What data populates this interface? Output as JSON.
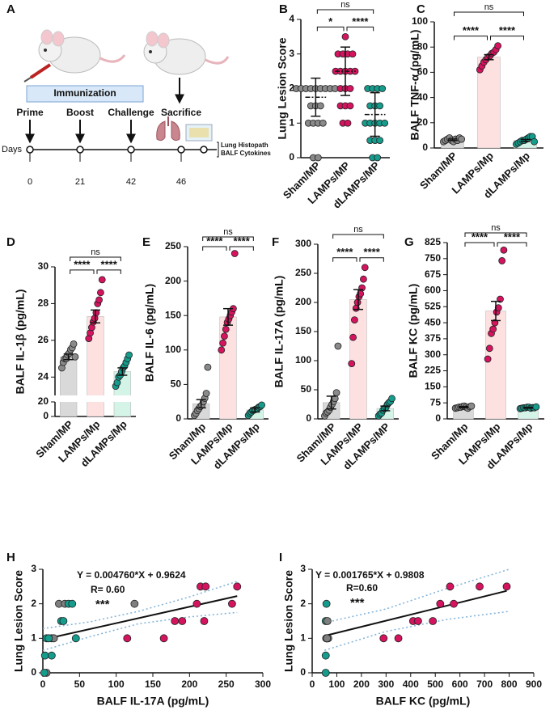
{
  "diagram": {
    "label": "A",
    "box": "Immunization",
    "events": [
      "Prime",
      "Boost",
      "Challenge",
      "Sacrifice"
    ],
    "days_label": "Days",
    "days": [
      0,
      21,
      42,
      46
    ],
    "endpoints": [
      "Lung Histopath",
      "BALF Cytokines"
    ]
  },
  "chart_data": [
    {
      "type": "dotplot",
      "panel_label": "B",
      "y_label": "Lung Lesion Score",
      "categories": [
        "Sham/MP",
        "LAMPs/MP",
        "dLAMPs/MP"
      ],
      "points": [
        [
          0,
          0,
          1,
          1,
          1,
          1,
          1.5,
          1.5,
          1.5,
          2,
          2,
          2,
          2,
          2,
          2,
          2,
          2,
          2
        ],
        [
          1,
          1,
          1.5,
          1.5,
          1.5,
          2,
          2,
          2,
          2.5,
          2.5,
          2.5,
          2.5,
          2.5,
          3,
          3,
          3,
          3,
          3.5
        ],
        [
          0,
          0,
          0.5,
          0.5,
          0.5,
          1,
          1,
          1,
          1,
          1,
          1.5,
          1.5,
          1.5,
          2,
          2,
          2,
          2
        ]
      ],
      "mean": [
        1.75,
        2.5,
        1.25
      ],
      "sd": [
        0.55,
        0.7,
        0.63
      ],
      "point_colors": [
        "#8a8a8a",
        "#d6135f",
        "#169c8c"
      ],
      "ylim": [
        0,
        4
      ],
      "yticks": [
        0,
        1,
        2,
        3,
        4
      ],
      "brackets": [
        {
          "pair": [
            0,
            2
          ],
          "label": "ns"
        },
        {
          "pair": [
            0,
            1
          ],
          "label": "*"
        },
        {
          "pair": [
            1,
            2
          ],
          "label": "****"
        }
      ]
    },
    {
      "type": "bar",
      "panel_label": "C",
      "y_label": "BALF TNF-α (pg/mL)",
      "categories": [
        "Sham/MP",
        "LAMPs/Mp",
        "dLAMPs/Mp"
      ],
      "values": [
        6.5,
        72,
        6
      ],
      "errors": [
        0.6,
        2,
        0.8
      ],
      "points": [
        [
          5,
          6,
          7,
          8,
          6,
          5,
          7,
          6,
          8,
          7
        ],
        [
          62,
          65,
          68,
          70,
          72,
          73,
          75,
          76,
          78,
          81
        ],
        [
          3,
          4,
          5,
          6,
          6,
          7,
          8,
          9,
          9,
          5
        ]
      ],
      "colors": [
        "#d9d9d9",
        "#fde0e0",
        "#d4f4e8"
      ],
      "point_colors": [
        "#8a8a8a",
        "#d6135f",
        "#169c8c"
      ],
      "ylim": [
        0,
        100
      ],
      "yticks": [
        0,
        20,
        40,
        60,
        80,
        100
      ],
      "brackets": [
        {
          "pair": [
            0,
            2
          ],
          "label": "ns"
        },
        {
          "pair": [
            0,
            1
          ],
          "label": "****"
        },
        {
          "pair": [
            1,
            2
          ],
          "label": "****"
        }
      ]
    },
    {
      "type": "bar",
      "panel_label": "D",
      "y_label": "BALF IL-1β (pg/mL)",
      "categories": [
        "Sham/MP",
        "LAMPs/Mp",
        "dLAMPs/Mp"
      ],
      "values": [
        25.1,
        27.3,
        24.3
      ],
      "errors": [
        0.15,
        0.35,
        0.2
      ],
      "points": [
        [
          24.5,
          24.8,
          25,
          25,
          25.2,
          25.3,
          25.5,
          25.6,
          25.8,
          25.1
        ],
        [
          26.1,
          26.4,
          26.7,
          27,
          27.2,
          27.5,
          28,
          28.2,
          28.6,
          29.3
        ],
        [
          23.5,
          23.7,
          24,
          24.1,
          24.3,
          24.5,
          24.6,
          24.8,
          25,
          25.2
        ]
      ],
      "colors": [
        "#d9d9d9",
        "#fde0e0",
        "#d4f4e8"
      ],
      "point_colors": [
        "#8a8a8a",
        "#d6135f",
        "#169c8c"
      ],
      "ylim": [
        0,
        30
      ],
      "ybreak": [
        20,
        23
      ],
      "yticks": [
        0,
        20,
        24,
        26,
        28,
        30
      ],
      "brackets": [
        {
          "pair": [
            0,
            2
          ],
          "label": "ns"
        },
        {
          "pair": [
            0,
            1
          ],
          "label": "****"
        },
        {
          "pair": [
            1,
            2
          ],
          "label": "****"
        }
      ]
    },
    {
      "type": "bar",
      "panel_label": "E",
      "y_label": "BALF IL-6 (pg/mL)",
      "categories": [
        "Sham/Mp",
        "LAMPs/Mp",
        "dLAMPs/Mp"
      ],
      "values": [
        22,
        148,
        13
      ],
      "errors": [
        6,
        12,
        3
      ],
      "points": [
        [
          5,
          8,
          12,
          15,
          18,
          20,
          25,
          30,
          37,
          75
        ],
        [
          100,
          110,
          120,
          130,
          140,
          145,
          150,
          155,
          160,
          240
        ],
        [
          5,
          8,
          10,
          12,
          13,
          14,
          15,
          17,
          18,
          20
        ]
      ],
      "colors": [
        "#d9d9d9",
        "#fde0e0",
        "#d4f4e8"
      ],
      "point_colors": [
        "#8a8a8a",
        "#d6135f",
        "#169c8c"
      ],
      "ylim": [
        0,
        250
      ],
      "yticks": [
        0,
        50,
        100,
        150,
        200,
        250
      ],
      "brackets": [
        {
          "pair": [
            0,
            2
          ],
          "label": "ns"
        },
        {
          "pair": [
            0,
            1
          ],
          "label": "****"
        },
        {
          "pair": [
            1,
            2
          ],
          "label": "****"
        }
      ]
    },
    {
      "type": "bar",
      "panel_label": "F",
      "y_label": "BALF IL-17A (pg/mL)",
      "categories": [
        "Sham//MP",
        "LAMPs/MP",
        "dLAMPs/MP"
      ],
      "values": [
        28,
        205,
        18
      ],
      "errors": [
        11,
        17,
        4
      ],
      "points": [
        [
          5,
          10,
          12,
          15,
          20,
          25,
          30,
          35,
          45,
          125
        ],
        [
          95,
          140,
          170,
          190,
          200,
          210,
          215,
          225,
          240,
          260
        ],
        [
          5,
          8,
          10,
          15,
          18,
          20,
          25,
          28,
          30,
          35
        ]
      ],
      "colors": [
        "#d9d9d9",
        "#fde0e0",
        "#d4f4e8"
      ],
      "point_colors": [
        "#8a8a8a",
        "#d6135f",
        "#169c8c"
      ],
      "ylim": [
        0,
        300
      ],
      "yticks": [
        0,
        50,
        100,
        150,
        200,
        250,
        300
      ],
      "brackets": [
        {
          "pair": [
            0,
            2
          ],
          "label": "ns"
        },
        {
          "pair": [
            0,
            1
          ],
          "label": "****"
        },
        {
          "pair": [
            1,
            2
          ],
          "label": "****"
        }
      ]
    },
    {
      "type": "bar",
      "panel_label": "G",
      "y_label": "BALF KC (pg/mL)",
      "categories": [
        "Sham/Mp",
        "LAMPs/Mp",
        "dLAMPs/Mp"
      ],
      "values": [
        55,
        505,
        52
      ],
      "errors": [
        3,
        45,
        2
      ],
      "points": [
        [
          50,
          52,
          55,
          55,
          58,
          60,
          55,
          50,
          57,
          60
        ],
        [
          280,
          330,
          400,
          420,
          450,
          500,
          520,
          560,
          740,
          790
        ],
        [
          48,
          50,
          52,
          52,
          55,
          55,
          50,
          53,
          52,
          56
        ]
      ],
      "colors": [
        "#d9d9d9",
        "#fde0e0",
        "#d4f4e8"
      ],
      "point_colors": [
        "#8a8a8a",
        "#d6135f",
        "#169c8c"
      ],
      "ylim": [
        0,
        825
      ],
      "yticks": [
        0,
        75,
        150,
        225,
        300,
        375,
        450,
        525,
        600,
        675,
        750,
        825
      ],
      "brackets": [
        {
          "pair": [
            0,
            2
          ],
          "label": "ns"
        },
        {
          "pair": [
            0,
            1
          ],
          "label": "****"
        },
        {
          "pair": [
            1,
            2
          ],
          "label": "****"
        }
      ]
    },
    {
      "type": "scatter",
      "panel_label": "H",
      "x_label": "BALF IL-17A (pg/mL)",
      "y_label": "Lung Lesion Score",
      "series": [
        {
          "color": "#7f7f7f",
          "x": [
            5,
            12,
            15,
            22,
            30,
            125
          ],
          "values": [
            0,
            1,
            1,
            2,
            2,
            2
          ]
        },
        {
          "color": "#169c8c",
          "x": [
            2,
            3,
            5,
            8,
            12,
            25,
            28,
            35,
            40,
            45
          ],
          "values": [
            0,
            0.5,
            1,
            1,
            0.5,
            1.5,
            1.5,
            2,
            2,
            1
          ]
        },
        {
          "color": "#d6135f",
          "x": [
            115,
            165,
            180,
            190,
            210,
            215,
            220,
            222,
            258,
            265
          ],
          "values": [
            1,
            1,
            1.5,
            1.5,
            2,
            2.5,
            1.5,
            2.5,
            2,
            2.5
          ]
        }
      ],
      "fit": {
        "slope": 0.00476,
        "intercept": 0.9624
      },
      "band": {
        "x": [
          0,
          65,
          130,
          200,
          265
        ],
        "upper": [
          1.28,
          1.48,
          1.78,
          2.2,
          2.65
        ],
        "lower": [
          0.65,
          1.05,
          1.42,
          1.62,
          1.75
        ]
      },
      "annotations": [
        "Y = 0.004760*X + 0.9624",
        "R= 0.60",
        "***"
      ],
      "xlim": [
        0,
        300
      ],
      "xticks": [
        0,
        50,
        100,
        150,
        200,
        250,
        300
      ],
      "ylim": [
        0,
        3
      ],
      "yticks": [
        0,
        1,
        2,
        3
      ]
    },
    {
      "type": "scatter",
      "panel_label": "I",
      "x_label": "BALF KC (pg/mL)",
      "y_label": "Lung Lesion Score",
      "series": [
        {
          "color": "#169c8c",
          "x": [
            55,
            55,
            57,
            55,
            58
          ],
          "values": [
            0,
            0.5,
            1,
            1.5,
            2
          ]
        },
        {
          "color": "#7f7f7f",
          "x": [
            60,
            62,
            65,
            60
          ],
          "values": [
            1,
            1.5,
            1,
            1
          ]
        },
        {
          "color": "#d6135f",
          "x": [
            290,
            350,
            410,
            430,
            490,
            520,
            560,
            575,
            680,
            790
          ],
          "values": [
            1,
            1,
            1.5,
            1.5,
            1.5,
            2,
            2.5,
            2,
            2.5,
            2.5
          ]
        }
      ],
      "fit": {
        "slope": 0.001765,
        "intercept": 0.9808
      },
      "band": {
        "x": [
          50,
          300,
          550,
          800
        ],
        "upper": [
          1.45,
          1.85,
          2.45,
          3.0
        ],
        "lower": [
          0.65,
          1.2,
          1.55,
          1.78
        ]
      },
      "annotations": [
        "Y = 0.001765*X + 0.9808",
        "R=0.60",
        "***"
      ],
      "xlim": [
        0,
        900
      ],
      "xticks": [
        0,
        100,
        200,
        300,
        400,
        500,
        600,
        700,
        800,
        900
      ],
      "ylim": [
        0,
        3
      ],
      "yticks": [
        0,
        1,
        2,
        3
      ]
    }
  ]
}
